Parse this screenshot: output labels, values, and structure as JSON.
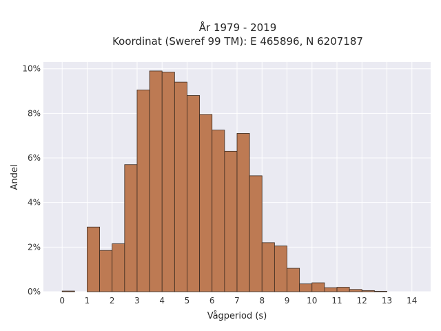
{
  "chart_data": {
    "type": "bar",
    "title": [
      "År 1979 - 2019",
      "Koordinat (Sweref 99 TM): E 465896, N 6207187"
    ],
    "xlabel": "Vågperiod (s)",
    "ylabel": "Andel",
    "xlim": [
      -0.75,
      14.75
    ],
    "ylim": [
      0,
      10.3
    ],
    "xticks": [
      "0",
      "1",
      "2",
      "3",
      "4",
      "5",
      "6",
      "7",
      "8",
      "9",
      "10",
      "11",
      "12",
      "13",
      "14"
    ],
    "yticks": [
      "0%",
      "2%",
      "4%",
      "6%",
      "8%",
      "10%"
    ],
    "grid": true,
    "bin_width": 0.5,
    "bins": [
      {
        "x0": 0.0,
        "value": 0.03
      },
      {
        "x0": 0.5,
        "value": 0.0
      },
      {
        "x0": 1.0,
        "value": 2.9
      },
      {
        "x0": 1.5,
        "value": 1.85
      },
      {
        "x0": 2.0,
        "value": 2.15
      },
      {
        "x0": 2.5,
        "value": 5.7
      },
      {
        "x0": 3.0,
        "value": 9.05
      },
      {
        "x0": 3.5,
        "value": 9.9
      },
      {
        "x0": 4.0,
        "value": 9.85
      },
      {
        "x0": 4.5,
        "value": 9.4
      },
      {
        "x0": 5.0,
        "value": 8.8
      },
      {
        "x0": 5.5,
        "value": 7.95
      },
      {
        "x0": 6.0,
        "value": 7.25
      },
      {
        "x0": 6.5,
        "value": 6.3
      },
      {
        "x0": 7.0,
        "value": 7.1
      },
      {
        "x0": 7.5,
        "value": 5.2
      },
      {
        "x0": 8.0,
        "value": 2.2
      },
      {
        "x0": 8.5,
        "value": 2.05
      },
      {
        "x0": 9.0,
        "value": 1.05
      },
      {
        "x0": 9.5,
        "value": 0.35
      },
      {
        "x0": 10.0,
        "value": 0.4
      },
      {
        "x0": 10.5,
        "value": 0.18
      },
      {
        "x0": 11.0,
        "value": 0.2
      },
      {
        "x0": 11.5,
        "value": 0.1
      },
      {
        "x0": 12.0,
        "value": 0.05
      },
      {
        "x0": 12.5,
        "value": 0.02
      }
    ],
    "colors": {
      "bar": "#bd7a53",
      "edge": "#3a2a20",
      "plot_bg": "#eaeaf2",
      "grid": "#ffffff"
    }
  }
}
